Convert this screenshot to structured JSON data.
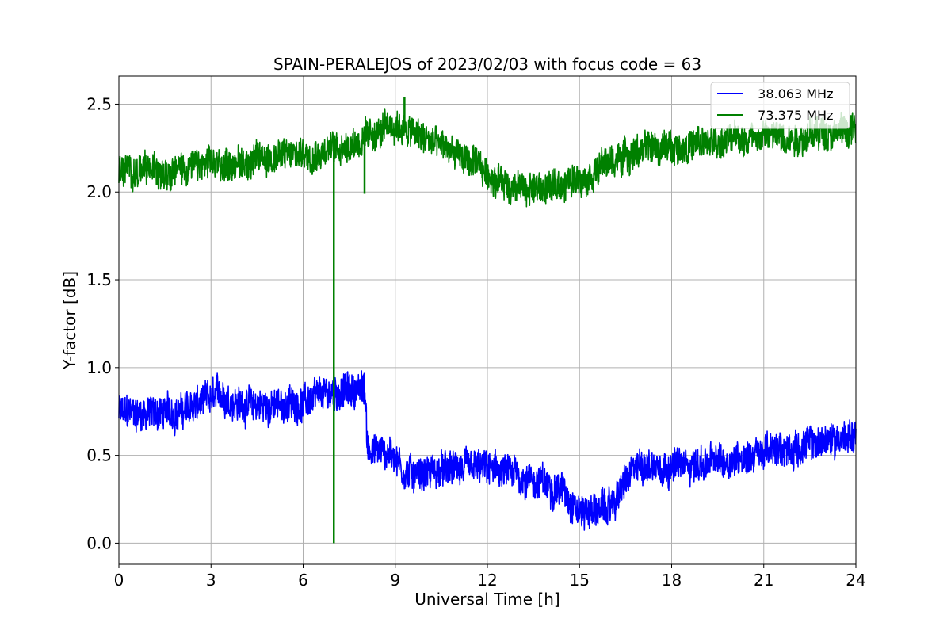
{
  "chart_data": {
    "type": "line",
    "title": "SPAIN-PERALEJOS of 2023/02/03 with focus code = 63",
    "xlabel": "Universal Time [h]",
    "ylabel": "Y-factor [dB]",
    "xlim": [
      0,
      24
    ],
    "ylim": [
      -0.12,
      2.66
    ],
    "xticks": [
      0,
      3,
      6,
      9,
      12,
      15,
      18,
      21,
      24
    ],
    "xtick_labels": [
      "0",
      "3",
      "6",
      "9",
      "12",
      "15",
      "18",
      "21",
      "24"
    ],
    "yticks": [
      0.0,
      0.5,
      1.0,
      1.5,
      2.0,
      2.5
    ],
    "ytick_labels": [
      "0.0",
      "0.5",
      "1.0",
      "1.5",
      "2.0",
      "2.5"
    ],
    "grid": true,
    "legend_position": "upper right",
    "series": [
      {
        "name": "38.063 MHz",
        "label": "  38.063 MHz",
        "color": "#0000ff",
        "band_hw": 0.09,
        "trend": [
          [
            0,
            0.74
          ],
          [
            1,
            0.74
          ],
          [
            2,
            0.75
          ],
          [
            3,
            0.82
          ],
          [
            3.3,
            0.85
          ],
          [
            4,
            0.79
          ],
          [
            5,
            0.78
          ],
          [
            6,
            0.8
          ],
          [
            7,
            0.86
          ],
          [
            8.0,
            0.88
          ],
          [
            8.1,
            0.55
          ],
          [
            9,
            0.5
          ],
          [
            9.3,
            0.4
          ],
          [
            10,
            0.4
          ],
          [
            11,
            0.42
          ],
          [
            12,
            0.42
          ],
          [
            13,
            0.38
          ],
          [
            14,
            0.33
          ],
          [
            14.5,
            0.3
          ],
          [
            15,
            0.18
          ],
          [
            16,
            0.2
          ],
          [
            16.5,
            0.35
          ],
          [
            17,
            0.45
          ],
          [
            18,
            0.44
          ],
          [
            19,
            0.45
          ],
          [
            20,
            0.48
          ],
          [
            21,
            0.52
          ],
          [
            22,
            0.54
          ],
          [
            23,
            0.58
          ],
          [
            24,
            0.62
          ]
        ],
        "spikes": []
      },
      {
        "name": "73.375 MHz",
        "label": "  73.375 MHz",
        "color": "#008000",
        "band_hw": 0.085,
        "trend": [
          [
            0,
            2.12
          ],
          [
            1,
            2.12
          ],
          [
            2,
            2.14
          ],
          [
            3,
            2.15
          ],
          [
            4,
            2.17
          ],
          [
            5,
            2.2
          ],
          [
            6,
            2.22
          ],
          [
            7,
            2.25
          ],
          [
            8,
            2.3
          ],
          [
            9,
            2.38
          ],
          [
            10,
            2.3
          ],
          [
            11,
            2.22
          ],
          [
            12,
            2.1
          ],
          [
            13,
            2.02
          ],
          [
            14,
            2.02
          ],
          [
            15,
            2.08
          ],
          [
            16,
            2.17
          ],
          [
            17,
            2.24
          ],
          [
            18,
            2.26
          ],
          [
            19,
            2.27
          ],
          [
            20,
            2.3
          ],
          [
            21,
            2.32
          ],
          [
            22,
            2.31
          ],
          [
            23,
            2.34
          ],
          [
            24,
            2.35
          ]
        ],
        "spikes": [
          {
            "x": 7.0,
            "y": 0.0
          },
          {
            "x": 8.0,
            "y": 1.99
          },
          {
            "x": 9.3,
            "y": 2.54
          }
        ]
      }
    ]
  }
}
